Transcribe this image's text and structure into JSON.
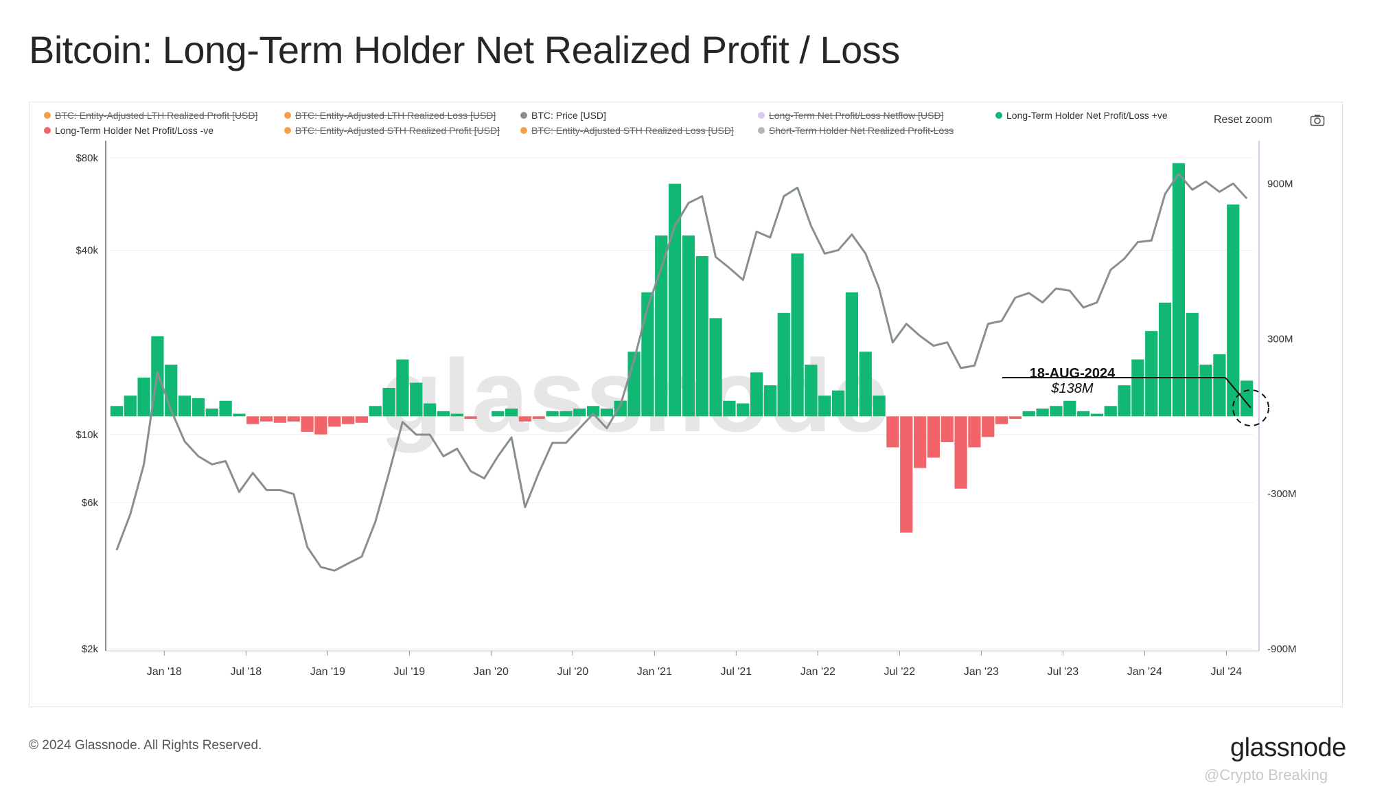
{
  "title": "Bitcoin: Long-Term Holder Net Realized Profit / Loss",
  "legend": [
    {
      "label": "BTC: Entity-Adjusted LTH Realized Profit [USD]",
      "color": "#f5a04a",
      "hidden": true
    },
    {
      "label": "BTC: Entity-Adjusted LTH Realized Loss [USD]",
      "color": "#f5a04a",
      "hidden": true
    },
    {
      "label": "BTC: Price [USD]",
      "color": "#888f92",
      "hidden": false
    },
    {
      "label": "Long-Term Net Profit/Loss Netflow [USD]",
      "color": "#d8c8ee",
      "hidden": true
    },
    {
      "label": "Long-Term Holder Net Profit/Loss +ve",
      "color": "#11b873",
      "hidden": false
    },
    {
      "label": "Long-Term Holder Net Profit/Loss -ve",
      "color": "#f0646a",
      "hidden": false
    },
    {
      "label": "BTC: Entity-Adjusted STH Realized Profit [USD]",
      "color": "#f5a04a",
      "hidden": true
    },
    {
      "label": "BTC: Entity-Adjusted STH Realized Loss [USD]",
      "color": "#f5a04a",
      "hidden": true
    },
    {
      "label": "Short-Term Holder Net Realized Profit-Loss",
      "color": "#b5b5b5",
      "hidden": true
    }
  ],
  "controls": {
    "reset_zoom": "Reset zoom",
    "camera_icon": "camera-icon"
  },
  "watermark": "glassnode",
  "annotation": {
    "date": "18-AUG-2024",
    "value": "$138M"
  },
  "footer": {
    "copyright": "© 2024 Glassnode. All Rights Reserved.",
    "brand": "glassnode",
    "credit": "@Crypto Breaking"
  },
  "colors": {
    "positive": "#11b873",
    "negative": "#f0646a",
    "price": "#888f92",
    "right_axis": "#d8c8ee"
  },
  "chart_data": {
    "type": "bar",
    "x_tick_labels": [
      "Jan '18",
      "Jul '18",
      "Jan '19",
      "Jul '19",
      "Jan '20",
      "Jul '20",
      "Jan '21",
      "Jul '21",
      "Jan '22",
      "Jul '22",
      "Jan '23",
      "Jul '23",
      "Jan '24",
      "Jul '24"
    ],
    "x_range": [
      "2017-09",
      "2024-08"
    ],
    "left_axis": {
      "label": "",
      "scale": "log",
      "ticks": [
        "$2k",
        "$6k",
        "$10k",
        "$40k",
        "$80k"
      ],
      "tick_values": [
        2000,
        6000,
        10000,
        40000,
        80000
      ],
      "range": [
        2000,
        80000
      ]
    },
    "right_axis": {
      "label": "",
      "scale": "linear",
      "ticks": [
        "900M",
        "300M",
        "-300M",
        "-900M"
      ],
      "tick_values": [
        900000000,
        300000000,
        -300000000,
        -900000000
      ],
      "range": [
        -900000000,
        1000000000
      ]
    },
    "series": [
      {
        "name": "BTC: Price [USD]",
        "type": "line",
        "axis": "left",
        "points": [
          [
            "2017-09",
            4200
          ],
          [
            "2017-10",
            5500
          ],
          [
            "2017-11",
            8000
          ],
          [
            "2017-12",
            16000
          ],
          [
            "2018-01",
            12000
          ],
          [
            "2018-02",
            9500
          ],
          [
            "2018-03",
            8500
          ],
          [
            "2018-04",
            8000
          ],
          [
            "2018-05",
            8200
          ],
          [
            "2018-06",
            6500
          ],
          [
            "2018-07",
            7500
          ],
          [
            "2018-08",
            6600
          ],
          [
            "2018-09",
            6600
          ],
          [
            "2018-10",
            6400
          ],
          [
            "2018-11",
            4300
          ],
          [
            "2018-12",
            3700
          ],
          [
            "2019-01",
            3600
          ],
          [
            "2019-02",
            3800
          ],
          [
            "2019-03",
            4000
          ],
          [
            "2019-04",
            5200
          ],
          [
            "2019-05",
            7500
          ],
          [
            "2019-06",
            11000
          ],
          [
            "2019-07",
            10000
          ],
          [
            "2019-08",
            10000
          ],
          [
            "2019-09",
            8500
          ],
          [
            "2019-10",
            9000
          ],
          [
            "2019-11",
            7600
          ],
          [
            "2019-12",
            7200
          ],
          [
            "2020-01",
            8500
          ],
          [
            "2020-02",
            9800
          ],
          [
            "2020-03",
            5800
          ],
          [
            "2020-04",
            7500
          ],
          [
            "2020-05",
            9400
          ],
          [
            "2020-06",
            9400
          ],
          [
            "2020-07",
            10500
          ],
          [
            "2020-08",
            11700
          ],
          [
            "2020-09",
            10500
          ],
          [
            "2020-10",
            12500
          ],
          [
            "2020-11",
            17500
          ],
          [
            "2020-12",
            26000
          ],
          [
            "2021-01",
            35000
          ],
          [
            "2021-02",
            48000
          ],
          [
            "2021-03",
            57000
          ],
          [
            "2021-04",
            60000
          ],
          [
            "2021-05",
            38000
          ],
          [
            "2021-06",
            35000
          ],
          [
            "2021-07",
            32000
          ],
          [
            "2021-08",
            46000
          ],
          [
            "2021-09",
            44000
          ],
          [
            "2021-10",
            60000
          ],
          [
            "2021-11",
            64000
          ],
          [
            "2021-12",
            48000
          ],
          [
            "2022-01",
            39000
          ],
          [
            "2022-02",
            40000
          ],
          [
            "2022-03",
            45000
          ],
          [
            "2022-04",
            39000
          ],
          [
            "2022-05",
            30000
          ],
          [
            "2022-06",
            20000
          ],
          [
            "2022-07",
            23000
          ],
          [
            "2022-08",
            21000
          ],
          [
            "2022-09",
            19500
          ],
          [
            "2022-10",
            20000
          ],
          [
            "2022-11",
            16500
          ],
          [
            "2022-12",
            16800
          ],
          [
            "2023-01",
            23000
          ],
          [
            "2023-02",
            23500
          ],
          [
            "2023-03",
            28000
          ],
          [
            "2023-04",
            29000
          ],
          [
            "2023-05",
            27000
          ],
          [
            "2023-06",
            30000
          ],
          [
            "2023-07",
            29500
          ],
          [
            "2023-08",
            26000
          ],
          [
            "2023-09",
            27000
          ],
          [
            "2023-10",
            34500
          ],
          [
            "2023-11",
            37500
          ],
          [
            "2023-12",
            42500
          ],
          [
            "2024-01",
            43000
          ],
          [
            "2024-02",
            61000
          ],
          [
            "2024-03",
            71000
          ],
          [
            "2024-04",
            63000
          ],
          [
            "2024-05",
            67000
          ],
          [
            "2024-06",
            62000
          ],
          [
            "2024-07",
            66000
          ],
          [
            "2024-08",
            59000
          ]
        ]
      },
      {
        "name": "Long-Term Holder Net Profit/Loss +ve",
        "type": "bar",
        "axis": "right",
        "points": [
          [
            "2017-09",
            40000000
          ],
          [
            "2017-10",
            80000000
          ],
          [
            "2017-11",
            150000000
          ],
          [
            "2017-12",
            310000000
          ],
          [
            "2018-01",
            200000000
          ],
          [
            "2018-02",
            80000000
          ],
          [
            "2018-03",
            70000000
          ],
          [
            "2018-04",
            30000000
          ],
          [
            "2018-05",
            60000000
          ],
          [
            "2018-06",
            10000000
          ],
          [
            "2019-04",
            40000000
          ],
          [
            "2019-05",
            110000000
          ],
          [
            "2019-06",
            220000000
          ],
          [
            "2019-07",
            130000000
          ],
          [
            "2019-08",
            50000000
          ],
          [
            "2019-09",
            20000000
          ],
          [
            "2019-10",
            10000000
          ],
          [
            "2020-01",
            20000000
          ],
          [
            "2020-02",
            30000000
          ],
          [
            "2020-05",
            20000000
          ],
          [
            "2020-06",
            20000000
          ],
          [
            "2020-07",
            30000000
          ],
          [
            "2020-08",
            40000000
          ],
          [
            "2020-09",
            30000000
          ],
          [
            "2020-10",
            60000000
          ],
          [
            "2020-11",
            250000000
          ],
          [
            "2020-12",
            480000000
          ],
          [
            "2021-01",
            700000000
          ],
          [
            "2021-02",
            900000000
          ],
          [
            "2021-03",
            700000000
          ],
          [
            "2021-04",
            620000000
          ],
          [
            "2021-05",
            380000000
          ],
          [
            "2021-06",
            60000000
          ],
          [
            "2021-07",
            50000000
          ],
          [
            "2021-08",
            170000000
          ],
          [
            "2021-09",
            120000000
          ],
          [
            "2021-10",
            400000000
          ],
          [
            "2021-11",
            630000000
          ],
          [
            "2021-12",
            200000000
          ],
          [
            "2022-01",
            80000000
          ],
          [
            "2022-02",
            100000000
          ],
          [
            "2022-03",
            480000000
          ],
          [
            "2022-04",
            250000000
          ],
          [
            "2022-05",
            80000000
          ],
          [
            "2023-04",
            20000000
          ],
          [
            "2023-05",
            30000000
          ],
          [
            "2023-06",
            40000000
          ],
          [
            "2023-07",
            60000000
          ],
          [
            "2023-08",
            20000000
          ],
          [
            "2023-09",
            10000000
          ],
          [
            "2023-10",
            40000000
          ],
          [
            "2023-11",
            120000000
          ],
          [
            "2023-12",
            220000000
          ],
          [
            "2024-01",
            330000000
          ],
          [
            "2024-02",
            440000000
          ],
          [
            "2024-03",
            980000000
          ],
          [
            "2024-04",
            400000000
          ],
          [
            "2024-05",
            200000000
          ],
          [
            "2024-06",
            240000000
          ],
          [
            "2024-07",
            820000000
          ],
          [
            "2024-08",
            138000000
          ]
        ]
      },
      {
        "name": "Long-Term Holder Net Profit/Loss -ve",
        "type": "bar",
        "axis": "right",
        "points": [
          [
            "2018-07",
            -30000000
          ],
          [
            "2018-08",
            -20000000
          ],
          [
            "2018-09",
            -25000000
          ],
          [
            "2018-10",
            -20000000
          ],
          [
            "2018-11",
            -60000000
          ],
          [
            "2018-12",
            -70000000
          ],
          [
            "2019-01",
            -40000000
          ],
          [
            "2019-02",
            -30000000
          ],
          [
            "2019-03",
            -25000000
          ],
          [
            "2019-11",
            -10000000
          ],
          [
            "2020-03",
            -20000000
          ],
          [
            "2020-04",
            -10000000
          ],
          [
            "2022-06",
            -120000000
          ],
          [
            "2022-07",
            -450000000
          ],
          [
            "2022-08",
            -200000000
          ],
          [
            "2022-09",
            -160000000
          ],
          [
            "2022-10",
            -100000000
          ],
          [
            "2022-11",
            -280000000
          ],
          [
            "2022-12",
            -120000000
          ],
          [
            "2023-01",
            -80000000
          ],
          [
            "2023-02",
            -30000000
          ],
          [
            "2023-03",
            -10000000
          ]
        ]
      }
    ]
  }
}
